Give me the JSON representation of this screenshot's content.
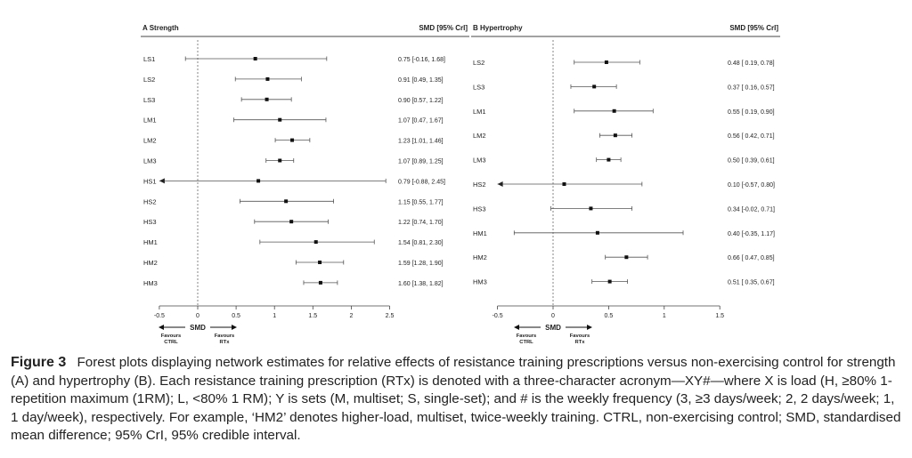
{
  "chart_data": [
    {
      "type": "forest",
      "panel": "A",
      "title": "Strength",
      "column_header": "SMD [95%  CrI]",
      "xlabel": "SMD",
      "favours_left": [
        "Favours",
        "CTRL"
      ],
      "favours_right": [
        "Favours",
        "RTx"
      ],
      "xlim": [
        -0.5,
        2.5
      ],
      "xticks": [
        -0.5,
        0,
        0.5,
        1,
        1.5,
        2,
        2.5
      ],
      "tick_labels": [
        "-0.5",
        "0",
        "0.5",
        "1",
        "1.5",
        "2",
        "2.5"
      ],
      "rows": [
        {
          "label": "LS1",
          "estimate": 0.75,
          "lower": -0.16,
          "upper": 1.68,
          "text": "0.75 [-0.16, 1.68]"
        },
        {
          "label": "LS2",
          "estimate": 0.91,
          "lower": 0.49,
          "upper": 1.35,
          "text": "0.91 [0.49, 1.35]"
        },
        {
          "label": "LS3",
          "estimate": 0.9,
          "lower": 0.57,
          "upper": 1.22,
          "text": "0.90 [0.57, 1.22]"
        },
        {
          "label": "LM1",
          "estimate": 1.07,
          "lower": 0.47,
          "upper": 1.67,
          "text": "1.07 [0.47, 1.67]"
        },
        {
          "label": "LM2",
          "estimate": 1.23,
          "lower": 1.01,
          "upper": 1.46,
          "text": "1.23 [1.01, 1.46]"
        },
        {
          "label": "LM3",
          "estimate": 1.07,
          "lower": 0.89,
          "upper": 1.25,
          "text": "1.07 [0.89, 1.25]"
        },
        {
          "label": "HS1",
          "estimate": 0.79,
          "lower": -0.88,
          "upper": 2.45,
          "text": "0.79 [-0.88, 2.45]"
        },
        {
          "label": "HS2",
          "estimate": 1.15,
          "lower": 0.55,
          "upper": 1.77,
          "text": "1.15 [0.55, 1.77]"
        },
        {
          "label": "HS3",
          "estimate": 1.22,
          "lower": 0.74,
          "upper": 1.7,
          "text": "1.22 [0.74, 1.70]"
        },
        {
          "label": "HM1",
          "estimate": 1.54,
          "lower": 0.81,
          "upper": 2.3,
          "text": "1.54 [0.81, 2.30]"
        },
        {
          "label": "HM2",
          "estimate": 1.59,
          "lower": 1.28,
          "upper": 1.9,
          "text": "1.59 [1.28, 1.90]"
        },
        {
          "label": "HM3",
          "estimate": 1.6,
          "lower": 1.38,
          "upper": 1.82,
          "text": "1.60 [1.38, 1.82]"
        }
      ]
    },
    {
      "type": "forest",
      "panel": "B",
      "title": "Hypertrophy",
      "column_header": "SMD [95% CrI]",
      "xlabel": "SMD",
      "favours_left": [
        "Favours",
        "CTRL"
      ],
      "favours_right": [
        "Favours",
        "RTx"
      ],
      "xlim": [
        -0.5,
        1.5
      ],
      "xticks": [
        -0.5,
        0,
        0.5,
        1,
        1.5
      ],
      "tick_labels": [
        "-0.5",
        "0",
        "0.5",
        "1",
        "1.5"
      ],
      "rows": [
        {
          "label": "LS2",
          "estimate": 0.48,
          "lower": 0.19,
          "upper": 0.78,
          "text": "0.48 [ 0.19, 0.78]"
        },
        {
          "label": "LS3",
          "estimate": 0.37,
          "lower": 0.16,
          "upper": 0.57,
          "text": "0.37 [ 0.16, 0.57]"
        },
        {
          "label": "LM1",
          "estimate": 0.55,
          "lower": 0.19,
          "upper": 0.9,
          "text": "0.55 [ 0.19, 0.90]"
        },
        {
          "label": "LM2",
          "estimate": 0.56,
          "lower": 0.42,
          "upper": 0.71,
          "text": "0.56 [ 0.42, 0.71]"
        },
        {
          "label": "LM3",
          "estimate": 0.5,
          "lower": 0.39,
          "upper": 0.61,
          "text": "0.50 [ 0.39, 0.61]"
        },
        {
          "label": "HS2",
          "estimate": 0.1,
          "lower": -0.57,
          "upper": 0.8,
          "text": "0.10 [-0.57, 0.80]"
        },
        {
          "label": "HS3",
          "estimate": 0.34,
          "lower": -0.02,
          "upper": 0.71,
          "text": "0.34 [-0.02, 0.71]"
        },
        {
          "label": "HM1",
          "estimate": 0.4,
          "lower": -0.35,
          "upper": 1.17,
          "text": "0.40 [-0.35, 1.17]"
        },
        {
          "label": "HM2",
          "estimate": 0.66,
          "lower": 0.47,
          "upper": 0.85,
          "text": "0.66 [ 0.47, 0.85]"
        },
        {
          "label": "HM3",
          "estimate": 0.51,
          "lower": 0.35,
          "upper": 0.67,
          "text": "0.51 [ 0.35, 0.67]"
        }
      ]
    }
  ],
  "caption": {
    "label": "Figure 3",
    "text": "Forest plots displaying network estimates for relative effects of resistance training prescriptions versus non-exercising control for strength (A) and hypertrophy (B). Each resistance training prescription (RTx) is denoted with a three-character acronym—XY#—where X is load (H, ≥80% 1-repetition maximum (1RM); L, <80% 1 RM); Y is sets (M, multiset; S, single-set); and # is the weekly frequency (3, ≥3 days/week; 2, 2 days/week; 1, 1 day/week), respectively. For example, ‘HM2’ denotes higher-load, multiset, twice-weekly training. CTRL, non-exercising control; SMD, standardised mean difference; 95% CrI, 95% credible interval."
  }
}
